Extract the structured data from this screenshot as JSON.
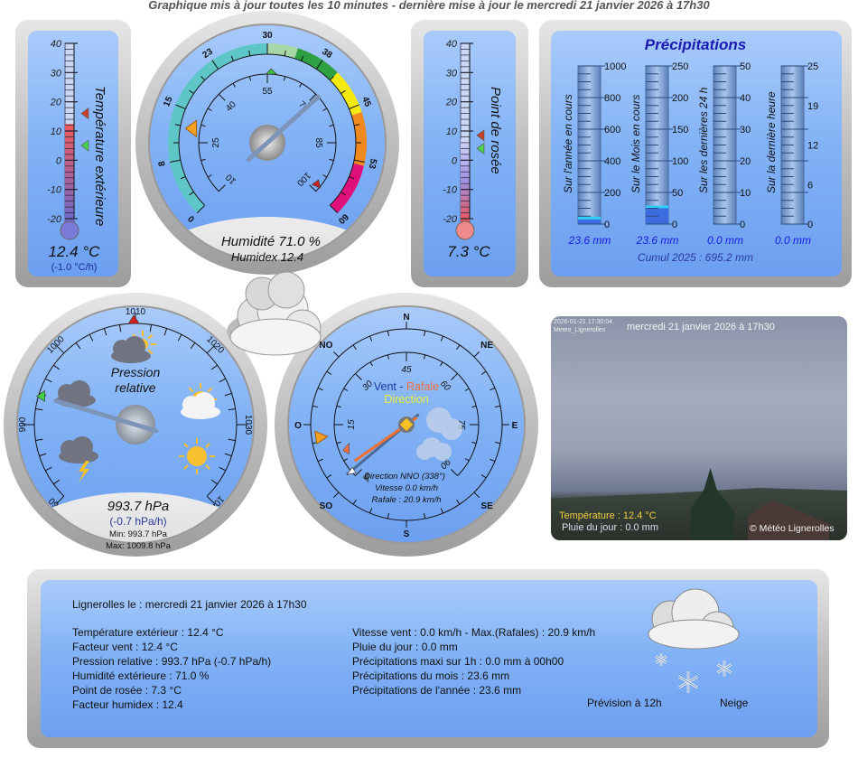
{
  "header": {
    "update_text": "Graphique mis à jour toutes les 10 minutes    -    dernière mise à jour le mercredi 21 janvier 2026 à 17h30"
  },
  "colors": {
    "panel_blue": "#7fb0f5",
    "bezel": "#c8c8c8",
    "temp_fill": "#e85050",
    "precip_title": "#1a1ab0",
    "precip_value": "#1a1ae0"
  },
  "temperature": {
    "title": "Température extérieure",
    "scale": [
      "40",
      "30",
      "20",
      "10",
      "0",
      "-10",
      "-20"
    ],
    "value": 12.4,
    "max_marker": 16,
    "min_marker": 5,
    "value_text": "12.4 °C",
    "trend_text": "(-1.0 °C/h)"
  },
  "dewpoint": {
    "title": "Point de rosée",
    "scale": [
      "40",
      "30",
      "20",
      "10",
      "0",
      "-10",
      "-20"
    ],
    "value": 7.3,
    "max_marker": 8.5,
    "min_marker": 4,
    "value_text": "7.3 °C"
  },
  "humidity": {
    "humidex_scale": [
      "0",
      "8",
      "15",
      "23",
      "30",
      "38",
      "45",
      "53",
      "60"
    ],
    "humidity_scale": [
      "10",
      "25",
      "40",
      "55",
      "70",
      "85",
      "100"
    ],
    "humidity_value": 71.0,
    "humidity_min_marker": 56,
    "humidity_max_marker": 97,
    "humidex_value": 12.4,
    "value_text": "Humidité 71.0  %",
    "humidex_text": "Humidex 12.4"
  },
  "precipitations": {
    "title": "Précipitations",
    "gauges": [
      {
        "label": "Sur l'année en cours",
        "scale": [
          "1000",
          "800",
          "600",
          "400",
          "200",
          "0"
        ],
        "max": 1000,
        "value": 23.6,
        "value_text": "23.6 mm"
      },
      {
        "label": "Sur le Mois en cours",
        "scale": [
          "250",
          "200",
          "150",
          "100",
          "50",
          "0"
        ],
        "max": 250,
        "value": 23.6,
        "value_text": "23.6 mm"
      },
      {
        "label": "Sur les dernières 24 h",
        "scale": [
          "50",
          "40",
          "30",
          "20",
          "10",
          "0"
        ],
        "max": 50,
        "value": 0.0,
        "value_text": "0.0 mm"
      },
      {
        "label": "Sur la dernière heure",
        "scale": [
          "25",
          "19",
          "12",
          "6",
          "0"
        ],
        "max": 25,
        "value": 0.0,
        "value_text": "0.0 mm"
      }
    ],
    "cumul_text": "Cumul 2025 : 695.2 mm"
  },
  "current_icon": "cloud-icon",
  "pressure": {
    "title_line1": "Pression",
    "title_line2": "relative",
    "scale": [
      "960",
      "990",
      "1000",
      "1010",
      "1020",
      "1030",
      "1040"
    ],
    "value": 993.7,
    "min_marker": 993.7,
    "max_marker": 1009.8,
    "value_text": "993.7 hPa",
    "trend_text": "(-0.7 hPa/h)",
    "min_text": "Min: 993.7 hPa",
    "max_text": "Max: 1009.8 hPa",
    "icons": [
      "storm-cloud-icon",
      "rain-cloud-icon",
      "cloud-sun-icon",
      "sun-cloud-icon",
      "sun-icon"
    ]
  },
  "wind": {
    "cardinals": [
      "N",
      "NE",
      "E",
      "SE",
      "S",
      "SO",
      "O",
      "NO"
    ],
    "speed_scale": [
      "15",
      "30",
      "45",
      "60",
      "75",
      "90"
    ],
    "title_vent": "Vent",
    "title_sep": " - ",
    "title_rafale": "Rafale",
    "title_direction": "Direction",
    "direction_deg": 338,
    "speed": 0.0,
    "gust": 20.9,
    "direction_text": "Direction NNO (338°)",
    "speed_text": "Vitesse 0.0 km/h",
    "gust_text": "Rafale : 20.9 km/h"
  },
  "webcam": {
    "stamp_line1": "2026-01-21 17:30:04",
    "stamp_line2": "Meteo_Lignerolles",
    "date_text": "mercredi 21 janvier 2026 à 17h30",
    "temp_text": "Température : 12.4 °C",
    "rain_text": "Pluie  du  jour : 0.0 mm",
    "copyright": "© Météo Lignerolles"
  },
  "summary": {
    "heading": "Lignerolles le : mercredi 21 janvier 2026 à 17h30",
    "left": [
      "Température extérieur : 12.4 °C",
      "Facteur vent : 12.4 °C",
      "Pression relative : 993.7 hPa (-0.7 hPa/h)",
      "Humidité extérieure : 71.0 %",
      "Point de rosée : 7.3 °C",
      "Facteur humidex : 12.4"
    ],
    "right": [
      "Vitesse vent : 0.0 km/h - Max.(Rafales) : 20.9 km/h",
      "Pluie du jour : 0.0 mm",
      "Précipitations maxi sur 1h : 0.0 mm à 00h00",
      "Précipitations du mois : 23.6 mm",
      "Précipitations de l'année : 23.6 mm"
    ],
    "forecast_label": "Prévision à 12h",
    "forecast_value": "Neige",
    "forecast_icon": "snow-cloud-icon"
  }
}
